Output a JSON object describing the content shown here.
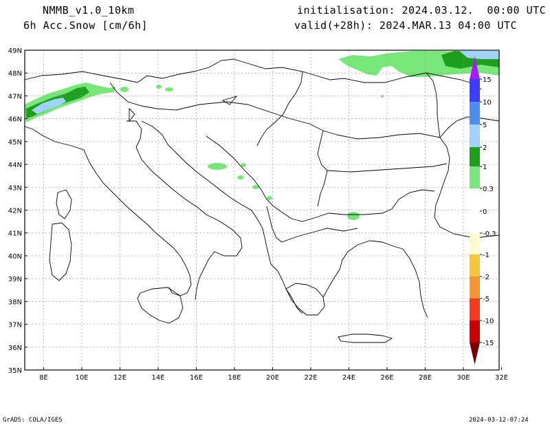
{
  "header": {
    "model": "NMMB_v1.0_10km",
    "field": "6h Acc.Snow [cm/6h]",
    "init": "initialisation: 2024.03.12.  00:00 UTC",
    "valid": "valid(+28h): 2024.MAR.13 04:00 UTC"
  },
  "footer": {
    "left": "GrADS: COLA/IGES",
    "right": "2024-03-12-07:24"
  },
  "axes": {
    "lat_labels": [
      "49N",
      "48N",
      "47N",
      "46N",
      "45N",
      "44N",
      "43N",
      "42N",
      "41N",
      "40N",
      "39N",
      "38N",
      "37N",
      "36N",
      "35N"
    ],
    "lon_labels": [
      "8E",
      "10E",
      "12E",
      "14E",
      "16E",
      "18E",
      "20E",
      "22E",
      "24E",
      "26E",
      "28E",
      "30E",
      "32E"
    ]
  },
  "colorbar": {
    "labels": [
      "15",
      "10",
      "5",
      "2",
      "1",
      "0.3",
      "0",
      "-0.3",
      "-1",
      "-2",
      "-5",
      "-10",
      "-15"
    ],
    "colors": {
      "p15": "#a020f0",
      "p10": "#3c3cff",
      "p5": "#4b8ff0",
      "p2": "#a0d2fa",
      "p1": "#1ea01e",
      "p03": "#78e678",
      "zero": "#ffffff",
      "n03": "#fffad0",
      "n1": "#f5c83c",
      "n2": "#f59632",
      "n5": "#f03c1e",
      "n10": "#c80000",
      "n15": "#780000"
    }
  }
}
